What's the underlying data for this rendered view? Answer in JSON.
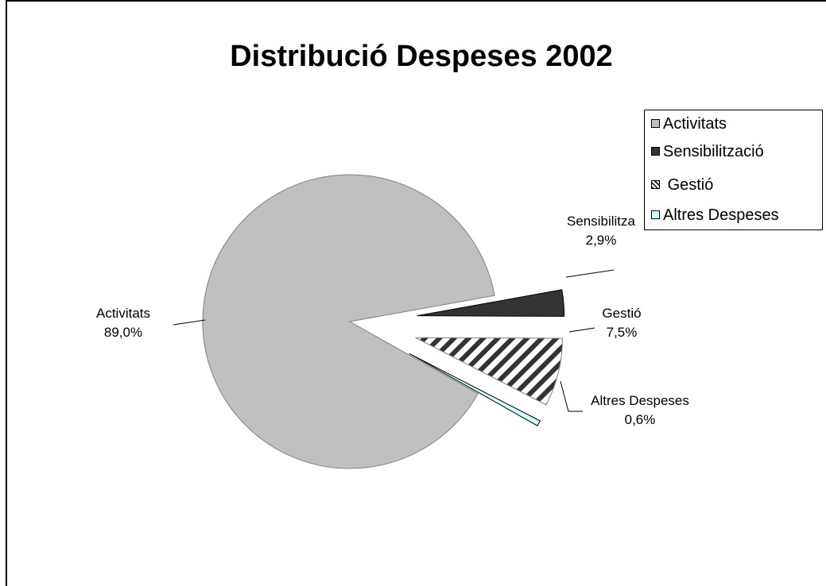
{
  "chart_data": {
    "type": "pie",
    "title": "Distribució Despeses 2002",
    "categories": [
      "Activitats",
      "Sensibilització",
      "Gestió",
      "Altres Despeses"
    ],
    "values": [
      89.0,
      2.9,
      7.5,
      0.6
    ],
    "value_labels": [
      "89,0%",
      "2,9%",
      "7,5%",
      "0,6%"
    ],
    "slice_labels": [
      "Activitats",
      "Sensibilitza",
      "Gestió",
      "Altres Despeses"
    ],
    "legend_position": "right",
    "colors": {
      "Activitats": "#c0c0c0",
      "Sensibilització": "#333333",
      "Gestió": "hatch",
      "Altres Despeses": "#ccffff"
    }
  },
  "legend": {
    "items": [
      "Activitats",
      "Sensibilització",
      "Gestió",
      "Altres Despeses"
    ]
  }
}
